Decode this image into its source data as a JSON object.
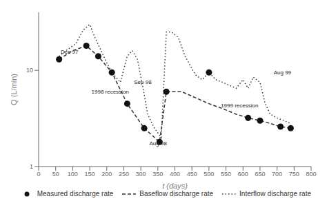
{
  "chart_data": {
    "type": "line",
    "xlabel": "t (days)",
    "ylabel": "Q (L/min)",
    "log": "y",
    "xlim": [
      0,
      800
    ],
    "ylim": [
      1,
      40
    ],
    "xticks": [
      0,
      50,
      100,
      150,
      200,
      250,
      300,
      350,
      400,
      450,
      500,
      550,
      600,
      650,
      700,
      750,
      800
    ],
    "yticks": [
      1,
      10
    ],
    "grid": false,
    "legend": "lower right",
    "series": [
      {
        "name": "Interflow discharge rate",
        "type": "line",
        "line_style": "dotted",
        "color": "#333333",
        "x": [
          60,
          80,
          110,
          130,
          150,
          165,
          180,
          200,
          215,
          240,
          260,
          275,
          290,
          305,
          320,
          340,
          360,
          375,
          390,
          410,
          430,
          460,
          480,
          500,
          520,
          540,
          560,
          580,
          600,
          615,
          630,
          650,
          665,
          680,
          700,
          720,
          740
        ],
        "values": [
          14,
          16,
          19,
          26,
          30,
          22,
          17,
          12,
          9.5,
          7.5,
          14,
          16,
          13,
          7,
          3.5,
          2.5,
          2.0,
          25,
          25,
          22,
          14,
          9,
          8,
          9.5,
          8,
          7.5,
          7,
          6.5,
          8,
          6.5,
          8.5,
          7.5,
          4.5,
          3.5,
          3.2,
          3.0,
          2.8
        ]
      },
      {
        "name": "Baseflow discharge rate",
        "type": "line",
        "line_style": "dashed",
        "color": "#333333",
        "x": [
          60,
          100,
          140,
          175,
          215,
          260,
          310,
          355,
          375,
          420,
          460,
          500,
          540,
          580,
          615,
          650,
          680,
          710,
          740
        ],
        "values": [
          13,
          16,
          18,
          14,
          9.5,
          4.5,
          2.5,
          1.8,
          6.0,
          6.0,
          5.2,
          4.5,
          4.0,
          3.5,
          3.2,
          3.0,
          2.8,
          2.6,
          2.5
        ]
      },
      {
        "name": "Measured discharge rate",
        "type": "scatter",
        "marker": "o",
        "color": "#111111",
        "x": [
          60,
          140,
          175,
          215,
          260,
          310,
          355,
          375,
          500,
          615,
          650,
          710,
          740
        ],
        "values": [
          13,
          18,
          14,
          9.5,
          4.5,
          2.5,
          1.8,
          6.0,
          9.5,
          3.2,
          3.0,
          2.6,
          2.5
        ]
      }
    ],
    "annotations": [
      {
        "text": "Dec 97",
        "x": 65,
        "y": 14.5
      },
      {
        "text": "1998 recession",
        "x": 155,
        "y": 5.5
      },
      {
        "text": "Aug 98",
        "x": 325,
        "y": 1.6
      },
      {
        "text": "Sep 98",
        "x": 280,
        "y": 7.0
      },
      {
        "text": "1999 recession",
        "x": 535,
        "y": 4.0
      },
      {
        "text": "Aug 99",
        "x": 690,
        "y": 8.8
      }
    ]
  }
}
